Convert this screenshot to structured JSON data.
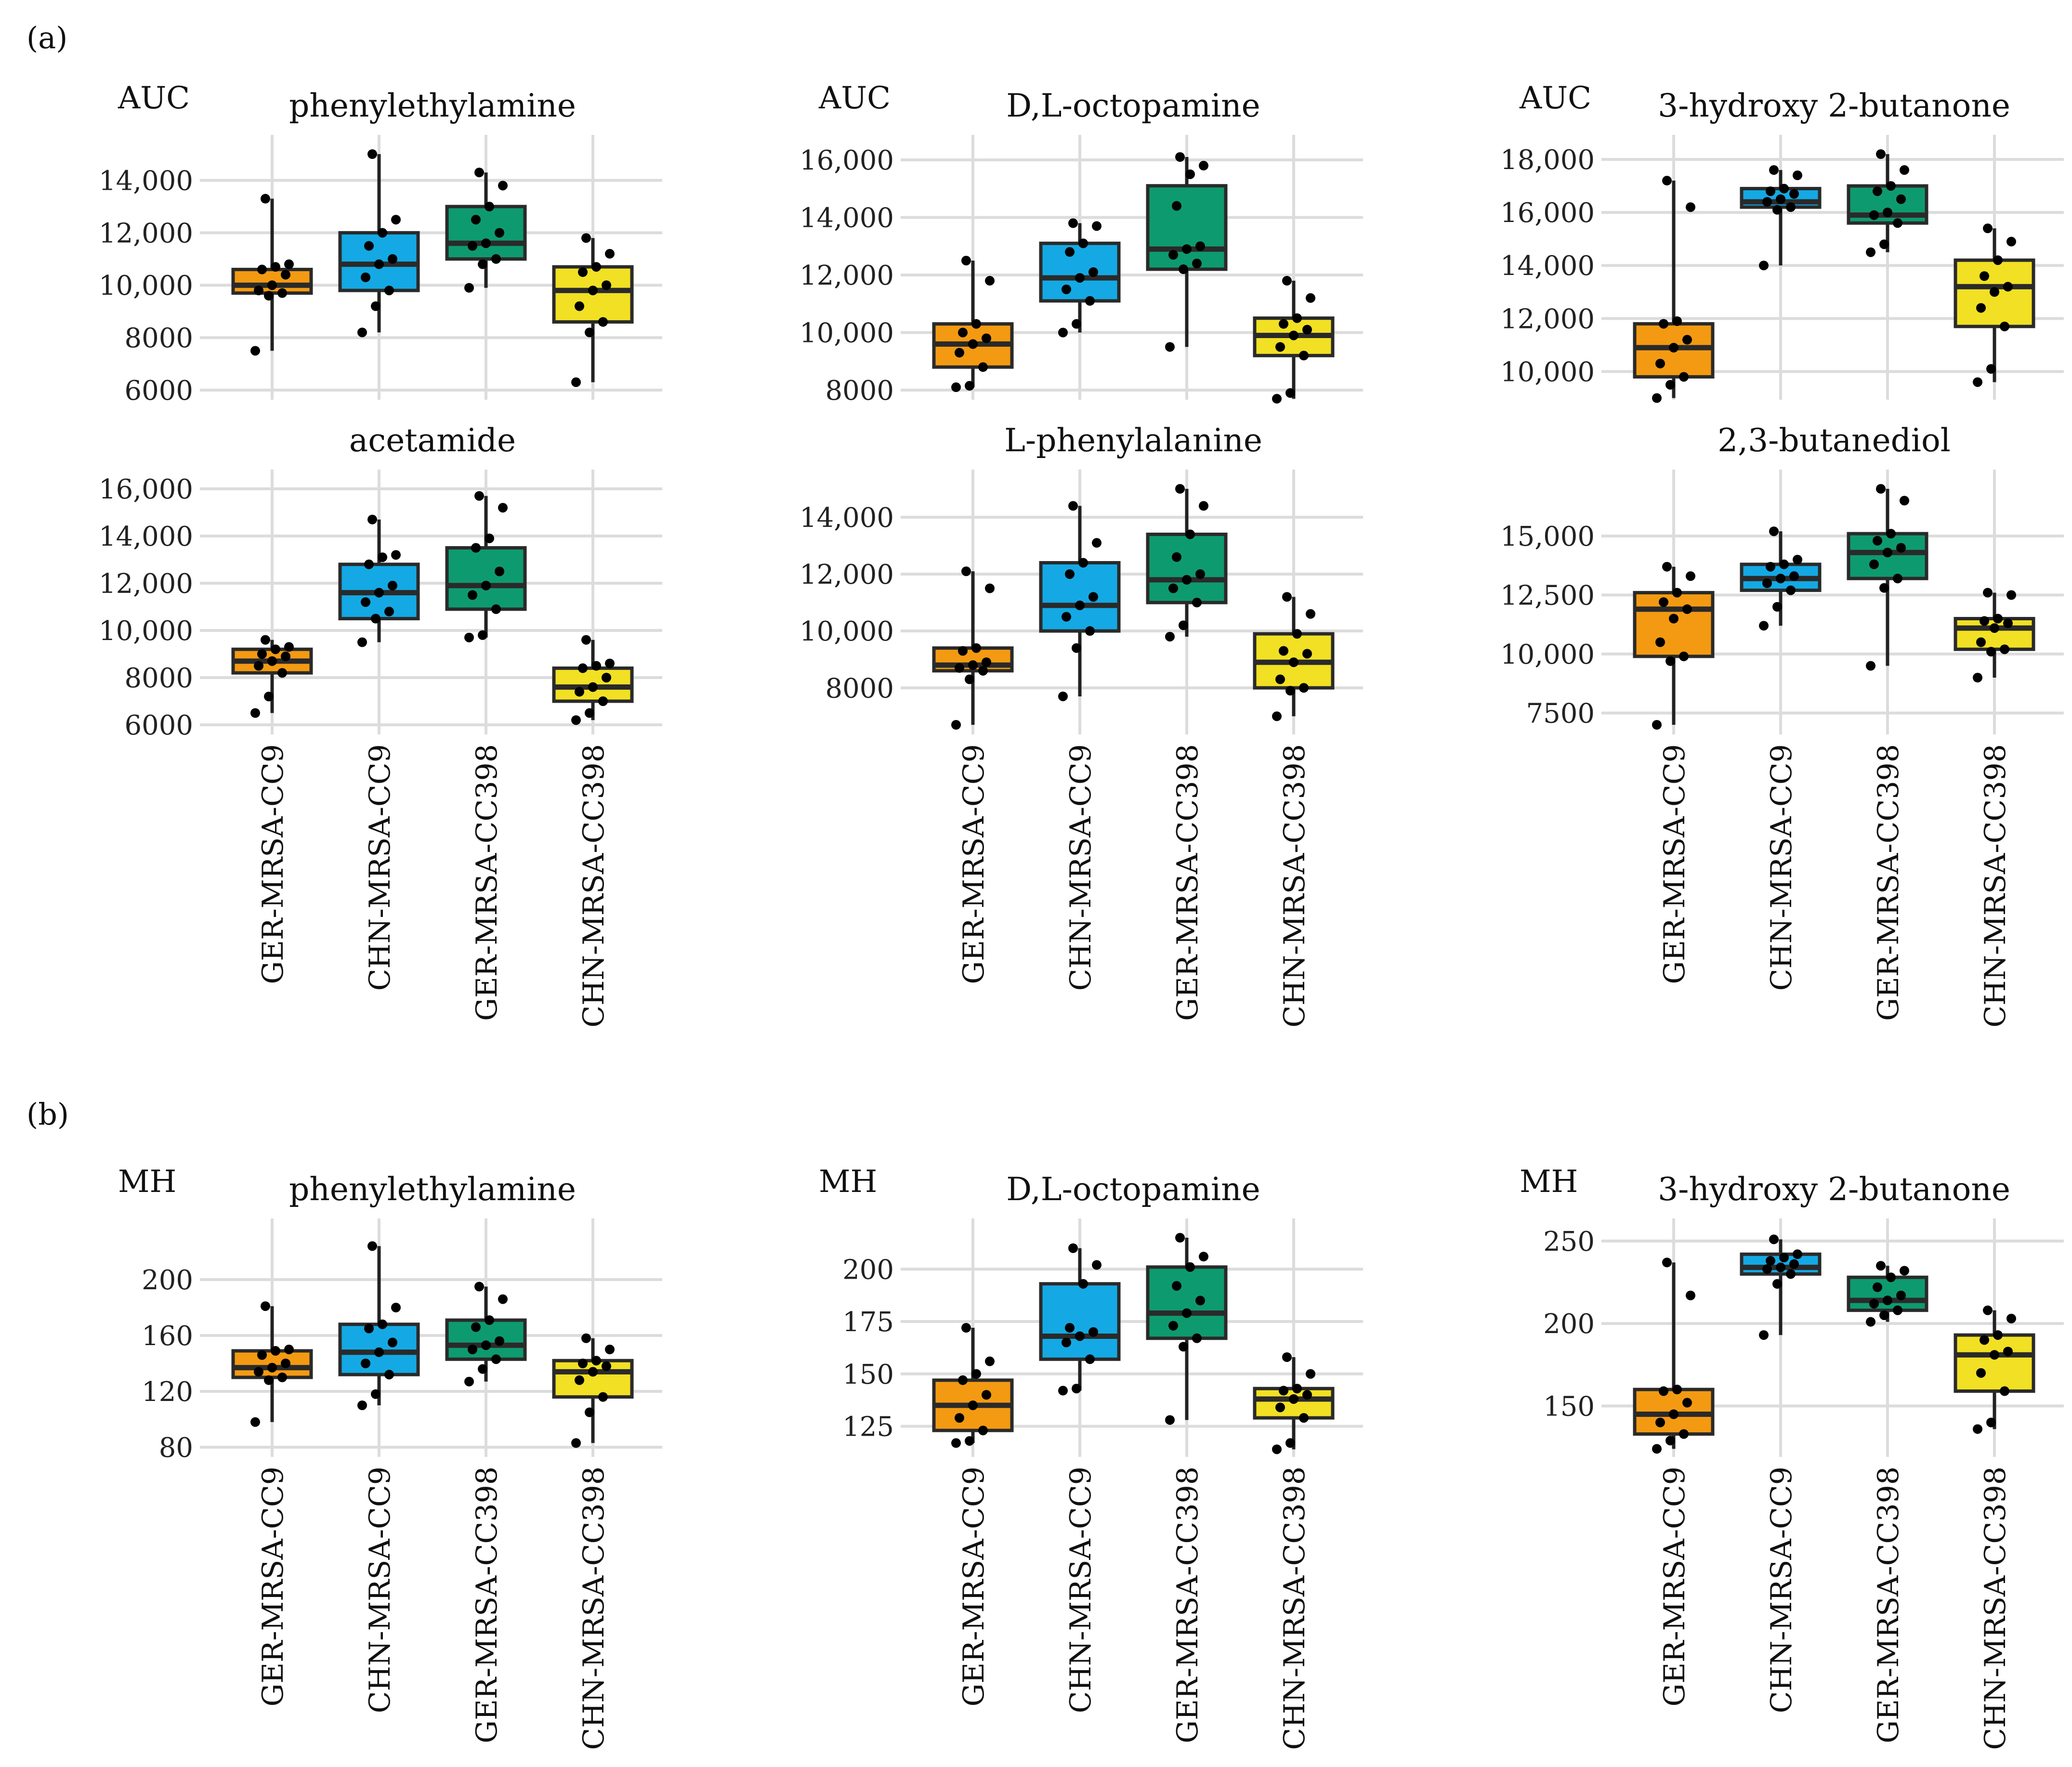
{
  "panel_labels": {
    "a": "(a)",
    "b": "(b)"
  },
  "group_colors": {
    "GER-MRSA-CC9": "#F39A12",
    "CHN-MRSA-CC9": "#14A9E4",
    "GER-MRSA-CC398": "#0E9A6F",
    "CHN-MRSA-CC398": "#F1E023"
  },
  "chart_data": [
    {
      "type": "box",
      "panel": "(a)",
      "row": 1,
      "col": 1,
      "ylabel": "AUC",
      "title": "phenylethylamine",
      "ylim": [
        6000,
        15000
      ],
      "yticks": [
        6000,
        8000,
        10000,
        12000,
        14000
      ],
      "ytick_labels": [
        "6000",
        "8000",
        "10,000",
        "12,000",
        "14,000"
      ],
      "categories": [
        "GER-MRSA-CC9",
        "CHN-MRSA-CC9",
        "GER-MRSA-CC398",
        "CHN-MRSA-CC398"
      ],
      "show_xlabels": false,
      "boxes": [
        {
          "min": 7500,
          "q1": 9700,
          "median": 10000,
          "q3": 10600,
          "max": 13300,
          "points": [
            7500,
            9600,
            9700,
            9800,
            10000,
            10400,
            10600,
            10700,
            10800,
            13300
          ]
        },
        {
          "min": 8200,
          "q1": 9800,
          "median": 10800,
          "q3": 12000,
          "max": 15000,
          "points": [
            8200,
            9200,
            9800,
            10300,
            10800,
            11000,
            11500,
            12000,
            12500,
            15000
          ]
        },
        {
          "min": 9900,
          "q1": 11000,
          "median": 11600,
          "q3": 13000,
          "max": 14300,
          "points": [
            9900,
            10800,
            11000,
            11500,
            11600,
            12000,
            12500,
            13000,
            13800,
            14300
          ]
        },
        {
          "min": 6300,
          "q1": 8600,
          "median": 9800,
          "q3": 10700,
          "max": 11800,
          "points": [
            6300,
            8200,
            8600,
            9200,
            9800,
            10000,
            10500,
            10700,
            11200,
            11800
          ]
        }
      ]
    },
    {
      "type": "box",
      "panel": "(a)",
      "row": 1,
      "col": 2,
      "ylabel": "AUC",
      "title": "D,L-octopamine",
      "ylim": [
        8000,
        16200
      ],
      "yticks": [
        8000,
        10000,
        12000,
        14000,
        16000
      ],
      "ytick_labels": [
        "8000",
        "10,000",
        "12,000",
        "14,000",
        "16,000"
      ],
      "categories": [
        "GER-MRSA-CC9",
        "CHN-MRSA-CC9",
        "GER-MRSA-CC398",
        "CHN-MRSA-CC398"
      ],
      "show_xlabels": false,
      "boxes": [
        {
          "min": 8100,
          "q1": 8800,
          "median": 9600,
          "q3": 10300,
          "max": 12500,
          "points": [
            8100,
            8150,
            8800,
            9300,
            9600,
            9800,
            10000,
            10300,
            11800,
            12500
          ]
        },
        {
          "min": 10000,
          "q1": 11100,
          "median": 11900,
          "q3": 13100,
          "max": 13800,
          "points": [
            10000,
            10300,
            11100,
            11500,
            11900,
            12100,
            12800,
            13100,
            13700,
            13800
          ]
        },
        {
          "min": 9500,
          "q1": 12200,
          "median": 12900,
          "q3": 15100,
          "max": 16100,
          "points": [
            9500,
            12200,
            12400,
            12700,
            12900,
            13000,
            14400,
            15500,
            15800,
            16100
          ]
        },
        {
          "min": 7700,
          "q1": 9200,
          "median": 9900,
          "q3": 10500,
          "max": 11800,
          "points": [
            7700,
            7900,
            9200,
            9500,
            9900,
            10100,
            10300,
            10500,
            11200,
            11800
          ]
        }
      ]
    },
    {
      "type": "box",
      "panel": "(a)",
      "row": 1,
      "col": 3,
      "ylabel": "AUC",
      "title": "3-hydroxy 2-butanone",
      "ylim": [
        9300,
        18200
      ],
      "yticks": [
        10000,
        12000,
        14000,
        16000,
        18000
      ],
      "ytick_labels": [
        "10,000",
        "12,000",
        "14,000",
        "16,000",
        "18,000"
      ],
      "categories": [
        "GER-MRSA-CC9",
        "CHN-MRSA-CC9",
        "GER-MRSA-CC398",
        "CHN-MRSA-CC398"
      ],
      "show_xlabels": false,
      "boxes": [
        {
          "min": 9000,
          "q1": 9800,
          "median": 10900,
          "q3": 11800,
          "max": 17200,
          "points": [
            9000,
            9500,
            9800,
            10300,
            10900,
            11200,
            11800,
            11900,
            16200,
            17200
          ]
        },
        {
          "min": 14000,
          "q1": 16200,
          "median": 16400,
          "q3": 16900,
          "max": 17600,
          "points": [
            14000,
            16100,
            16200,
            16400,
            16500,
            16700,
            16800,
            16900,
            17400,
            17600
          ]
        },
        {
          "min": 14500,
          "q1": 15600,
          "median": 15900,
          "q3": 17000,
          "max": 18200,
          "points": [
            14500,
            14800,
            15600,
            15900,
            16000,
            16500,
            16800,
            17000,
            17600,
            18200
          ]
        },
        {
          "min": 9600,
          "q1": 11700,
          "median": 13200,
          "q3": 14200,
          "max": 15400,
          "points": [
            9600,
            10100,
            11700,
            12400,
            13000,
            13200,
            13600,
            14200,
            14900,
            15400
          ]
        }
      ]
    },
    {
      "type": "box",
      "panel": "(a)",
      "row": 2,
      "col": 1,
      "title": "acetamide",
      "ylim": [
        6000,
        16000
      ],
      "yticks": [
        6000,
        8000,
        10000,
        12000,
        14000,
        16000
      ],
      "ytick_labels": [
        "6000",
        "8000",
        "10,000",
        "12,000",
        "14,000",
        "16,000"
      ],
      "categories": [
        "GER-MRSA-CC9",
        "CHN-MRSA-CC9",
        "GER-MRSA-CC398",
        "CHN-MRSA-CC398"
      ],
      "show_xlabels": true,
      "boxes": [
        {
          "min": 6500,
          "q1": 8200,
          "median": 8700,
          "q3": 9200,
          "max": 9600,
          "points": [
            6500,
            7200,
            8200,
            8500,
            8700,
            8900,
            9000,
            9200,
            9300,
            9600
          ]
        },
        {
          "min": 9500,
          "q1": 10500,
          "median": 11600,
          "q3": 12800,
          "max": 14700,
          "points": [
            9500,
            10500,
            10800,
            11200,
            11600,
            11900,
            12800,
            13100,
            13200,
            14700
          ]
        },
        {
          "min": 9700,
          "q1": 10900,
          "median": 11900,
          "q3": 13500,
          "max": 15700,
          "points": [
            9700,
            9800,
            10900,
            11500,
            11900,
            12500,
            13500,
            13900,
            15200,
            15700
          ]
        },
        {
          "min": 6200,
          "q1": 7000,
          "median": 7600,
          "q3": 8400,
          "max": 9600,
          "points": [
            6200,
            6500,
            7000,
            7400,
            7600,
            8000,
            8400,
            8500,
            8600,
            9600
          ]
        }
      ]
    },
    {
      "type": "box",
      "panel": "(a)",
      "row": 2,
      "col": 2,
      "title": "L-phenylalanine",
      "ylim": [
        6700,
        15000
      ],
      "yticks": [
        8000,
        10000,
        12000,
        14000
      ],
      "ytick_labels": [
        "8000",
        "10,000",
        "12,000",
        "14,000"
      ],
      "categories": [
        "GER-MRSA-CC9",
        "CHN-MRSA-CC9",
        "GER-MRSA-CC398",
        "CHN-MRSA-CC398"
      ],
      "show_xlabels": true,
      "boxes": [
        {
          "min": 6700,
          "q1": 8600,
          "median": 8800,
          "q3": 9400,
          "max": 12100,
          "points": [
            6700,
            8300,
            8600,
            8700,
            8800,
            8900,
            9300,
            9400,
            11500,
            12100
          ]
        },
        {
          "min": 7700,
          "q1": 10000,
          "median": 10900,
          "q3": 12400,
          "max": 14400,
          "points": [
            7700,
            9400,
            10000,
            10500,
            10900,
            11200,
            12000,
            12400,
            13100,
            14400
          ]
        },
        {
          "min": 9800,
          "q1": 11000,
          "median": 11800,
          "q3": 13400,
          "max": 15000,
          "points": [
            9800,
            10200,
            11000,
            11500,
            11800,
            12000,
            12600,
            13400,
            14400,
            15000
          ]
        },
        {
          "min": 7000,
          "q1": 8000,
          "median": 8900,
          "q3": 9900,
          "max": 11200,
          "points": [
            7000,
            7900,
            8000,
            8300,
            8900,
            9200,
            9300,
            9900,
            10600,
            11200
          ]
        }
      ]
    },
    {
      "type": "box",
      "panel": "(a)",
      "row": 2,
      "col": 3,
      "title": "2,3-butanediol",
      "ylim": [
        7000,
        17000
      ],
      "yticks": [
        7500,
        10000,
        12500,
        15000
      ],
      "ytick_labels": [
        "7500",
        "10,000",
        "12,500",
        "15,000"
      ],
      "categories": [
        "GER-MRSA-CC9",
        "CHN-MRSA-CC9",
        "GER-MRSA-CC398",
        "CHN-MRSA-CC398"
      ],
      "show_xlabels": true,
      "boxes": [
        {
          "min": 7000,
          "q1": 9900,
          "median": 11900,
          "q3": 12600,
          "max": 13700,
          "points": [
            7000,
            9700,
            9900,
            10500,
            11500,
            11900,
            12200,
            12600,
            13300,
            13700
          ]
        },
        {
          "min": 11200,
          "q1": 12700,
          "median": 13200,
          "q3": 13800,
          "max": 15200,
          "points": [
            11200,
            12000,
            12700,
            13000,
            13200,
            13300,
            13700,
            13800,
            14000,
            15200
          ]
        },
        {
          "min": 9500,
          "q1": 13200,
          "median": 14300,
          "q3": 15100,
          "max": 17000,
          "points": [
            9500,
            12800,
            13200,
            13800,
            14300,
            14500,
            14800,
            15100,
            16500,
            17000
          ]
        },
        {
          "min": 9000,
          "q1": 10200,
          "median": 11100,
          "q3": 11500,
          "max": 12600,
          "points": [
            9000,
            10100,
            10200,
            10500,
            11100,
            11300,
            11400,
            11500,
            12500,
            12600
          ]
        }
      ]
    },
    {
      "type": "box",
      "panel": "(b)",
      "row": 1,
      "col": 1,
      "ylabel": "MH",
      "title": "phenylethylamine",
      "ylim": [
        80,
        230
      ],
      "yticks": [
        80,
        120,
        160,
        200
      ],
      "ytick_labels": [
        "80",
        "120",
        "160",
        "200"
      ],
      "categories": [
        "GER-MRSA-CC9",
        "CHN-MRSA-CC9",
        "GER-MRSA-CC398",
        "CHN-MRSA-CC398"
      ],
      "show_xlabels": true,
      "boxes": [
        {
          "min": 98,
          "q1": 130,
          "median": 137,
          "q3": 149,
          "max": 181,
          "points": [
            98,
            128,
            130,
            134,
            137,
            140,
            146,
            149,
            150,
            181
          ]
        },
        {
          "min": 110,
          "q1": 132,
          "median": 148,
          "q3": 168,
          "max": 224,
          "points": [
            110,
            118,
            132,
            140,
            148,
            155,
            165,
            168,
            180,
            224
          ]
        },
        {
          "min": 127,
          "q1": 143,
          "median": 153,
          "q3": 171,
          "max": 195,
          "points": [
            127,
            136,
            143,
            150,
            153,
            156,
            166,
            171,
            186,
            195
          ]
        },
        {
          "min": 83,
          "q1": 116,
          "median": 134,
          "q3": 142,
          "max": 158,
          "points": [
            83,
            105,
            116,
            128,
            134,
            138,
            140,
            142,
            150,
            158
          ]
        }
      ]
    },
    {
      "type": "box",
      "panel": "(b)",
      "row": 1,
      "col": 2,
      "ylabel": "MH",
      "title": "D,L-octopamine",
      "ylim": [
        115,
        215
      ],
      "yticks": [
        125,
        150,
        175,
        200
      ],
      "ytick_labels": [
        "125",
        "150",
        "175",
        "200"
      ],
      "categories": [
        "GER-MRSA-CC9",
        "CHN-MRSA-CC9",
        "GER-MRSA-CC398",
        "CHN-MRSA-CC398"
      ],
      "show_xlabels": true,
      "boxes": [
        {
          "min": 117,
          "q1": 123,
          "median": 135,
          "q3": 147,
          "max": 172,
          "points": [
            117,
            118,
            123,
            129,
            135,
            140,
            147,
            150,
            156,
            172
          ]
        },
        {
          "min": 142,
          "q1": 157,
          "median": 168,
          "q3": 193,
          "max": 210,
          "points": [
            142,
            143,
            157,
            165,
            168,
            170,
            172,
            193,
            202,
            210
          ]
        },
        {
          "min": 128,
          "q1": 167,
          "median": 179,
          "q3": 201,
          "max": 215,
          "points": [
            128,
            163,
            167,
            173,
            179,
            185,
            192,
            201,
            206,
            215
          ]
        },
        {
          "min": 114,
          "q1": 129,
          "median": 138,
          "q3": 143,
          "max": 158,
          "points": [
            114,
            117,
            129,
            134,
            138,
            140,
            142,
            143,
            150,
            158
          ]
        }
      ]
    },
    {
      "type": "box",
      "panel": "(b)",
      "row": 1,
      "col": 3,
      "ylabel": "MH",
      "title": "3-hydroxy 2-butanone",
      "ylim": [
        125,
        252
      ],
      "yticks": [
        150,
        200,
        250
      ],
      "ytick_labels": [
        "150",
        "200",
        "250"
      ],
      "categories": [
        "GER-MRSA-CC9",
        "CHN-MRSA-CC9",
        "GER-MRSA-CC398",
        "CHN-MRSA-CC398"
      ],
      "show_xlabels": true,
      "boxes": [
        {
          "min": 124,
          "q1": 133,
          "median": 145,
          "q3": 160,
          "max": 237,
          "points": [
            124,
            129,
            133,
            140,
            145,
            152,
            159,
            160,
            217,
            237
          ]
        },
        {
          "min": 193,
          "q1": 230,
          "median": 234,
          "q3": 242,
          "max": 251,
          "points": [
            193,
            224,
            230,
            233,
            234,
            236,
            238,
            240,
            242,
            251
          ]
        },
        {
          "min": 201,
          "q1": 208,
          "median": 214,
          "q3": 228,
          "max": 235,
          "points": [
            201,
            205,
            208,
            212,
            214,
            217,
            222,
            228,
            232,
            235
          ]
        },
        {
          "min": 136,
          "q1": 159,
          "median": 181,
          "q3": 193,
          "max": 208,
          "points": [
            136,
            140,
            159,
            170,
            181,
            183,
            190,
            193,
            203,
            208
          ]
        }
      ]
    }
  ]
}
